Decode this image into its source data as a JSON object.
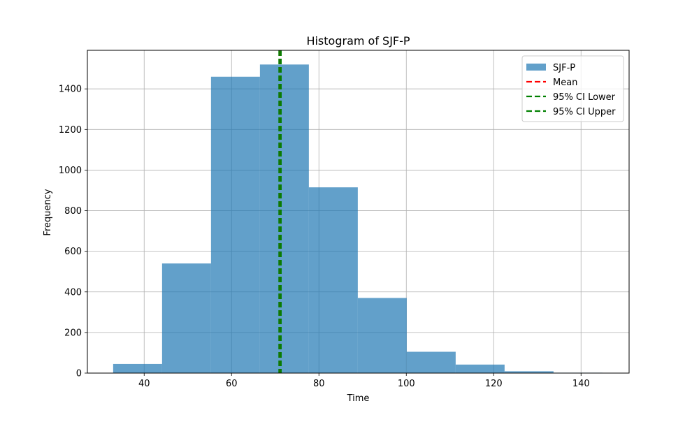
{
  "chart_data": {
    "type": "bar",
    "title": "Histogram of SJF-P",
    "xlabel": "Time",
    "ylabel": "Frequency",
    "xlim": [
      27,
      151
    ],
    "ylim": [
      0,
      1590
    ],
    "xticks": [
      40,
      60,
      80,
      100,
      120,
      140
    ],
    "yticks": [
      0,
      200,
      400,
      600,
      800,
      1000,
      1200,
      1400
    ],
    "grid": true,
    "legend_position": "top-right",
    "series": [
      {
        "name": "SJF-P",
        "color": "#1f77b4",
        "alpha": 0.7,
        "bins": [
          {
            "x0": 32.9,
            "x1": 44.1,
            "count": 45
          },
          {
            "x0": 44.1,
            "x1": 55.3,
            "count": 540
          },
          {
            "x0": 55.3,
            "x1": 66.5,
            "count": 1460
          },
          {
            "x0": 66.5,
            "x1": 77.7,
            "count": 1520
          },
          {
            "x0": 77.7,
            "x1": 88.9,
            "count": 915
          },
          {
            "x0": 88.9,
            "x1": 100.1,
            "count": 370
          },
          {
            "x0": 100.1,
            "x1": 111.3,
            "count": 105
          },
          {
            "x0": 111.3,
            "x1": 122.5,
            "count": 42
          },
          {
            "x0": 122.5,
            "x1": 133.7,
            "count": 9
          },
          {
            "x0": 133.7,
            "x1": 144.9,
            "count": 2
          }
        ]
      }
    ],
    "vlines": [
      {
        "name": "Mean",
        "x": 71.1,
        "color": "#ff0000",
        "style": "dashed"
      },
      {
        "name": "95% CI Lower",
        "x": 70.9,
        "color": "#008000",
        "style": "dashed"
      },
      {
        "name": "95% CI Upper",
        "x": 71.3,
        "color": "#008000",
        "style": "dashed"
      }
    ]
  }
}
